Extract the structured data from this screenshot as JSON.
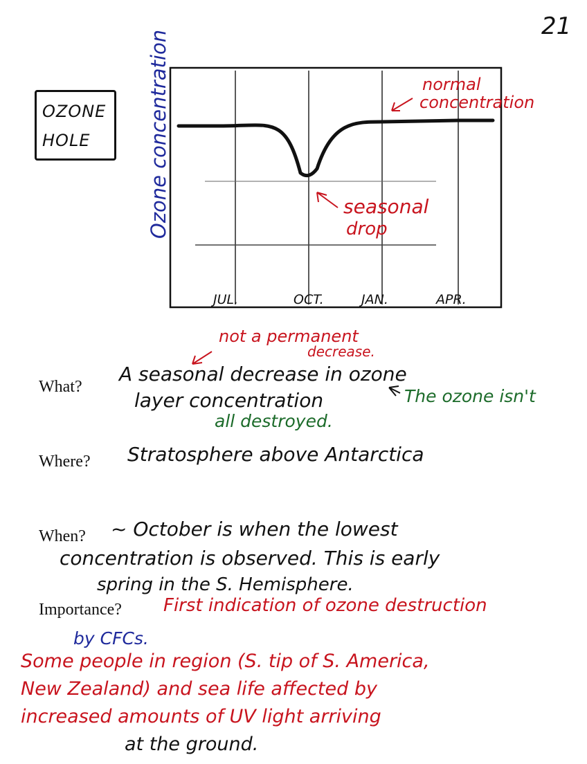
{
  "page_number": "21",
  "title_box": [
    "OZONE",
    "HOLE"
  ],
  "graph": {
    "y_axis_label": "Ozone concentration",
    "x_labels": [
      "JUL.",
      "OCT.",
      "JAN.",
      "APR."
    ],
    "annotation_normal": [
      "normal",
      "concentration"
    ],
    "annotation_drop": [
      "seasonal",
      "drop"
    ],
    "colors": {
      "axis": "#111111",
      "curve": "#111111",
      "annotation": "#c8141e",
      "y_label": "#1f2a9c"
    }
  },
  "chart_data": {
    "type": "line",
    "categories": [
      "JUL.",
      "OCT.",
      "JAN.",
      "APR."
    ],
    "ylabel": "Ozone concentration",
    "series": [
      {
        "values": [
          1.0,
          0.1,
          1.0,
          1.0
        ]
      }
    ]
  },
  "annotations": {
    "not_permanent": [
      "not a permanent",
      "decrease."
    ]
  },
  "sections": {
    "what_label": "What?",
    "what_line1": "A seasonal decrease in ozone",
    "what_line2": "layer concentration",
    "what_note_green1": "The ozone isn't",
    "what_note_green2": "all destroyed.",
    "where_label": "Where?",
    "where_text": "Stratosphere above Antarctica",
    "when_label": "When?",
    "when_line1": "~ October is when the lowest",
    "when_line2": "concentration is observed. This is early",
    "when_line3": "spring in the S. Hemisphere.",
    "importance_label": "Importance?",
    "importance_line1": "First indication of ozone destruction",
    "importance_line2": "by CFCs.",
    "importance_line3": "Some people in region (S. tip of S. America,",
    "importance_line4": "New Zealand) and sea life affected by",
    "importance_line5": "increased amounts of UV light arriving",
    "importance_line6": "at the ground."
  }
}
